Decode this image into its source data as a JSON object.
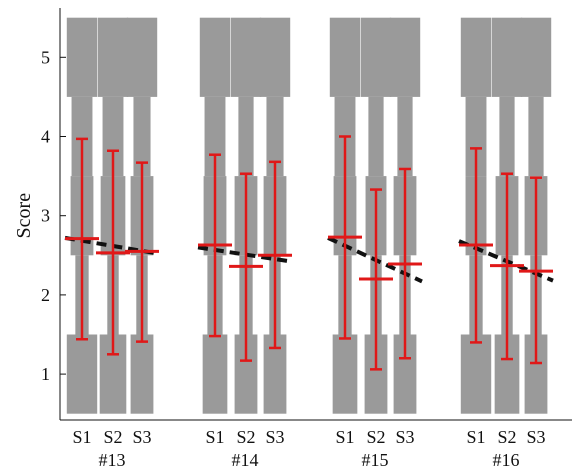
{
  "chart_data": {
    "type": "violin-errorbar",
    "ylabel": "Score",
    "ylim": [
      0.4,
      5.55
    ],
    "yticks": [
      "1",
      "2",
      "3",
      "4",
      "5"
    ],
    "grid": false,
    "colors": {
      "shape": "#9a9a9a",
      "errorbar": "#e01818",
      "trend": "#111111"
    },
    "groups": [
      {
        "label": "#13",
        "conditions": [
          {
            "label": "S1",
            "mean": 2.71,
            "low": 1.44,
            "high": 3.97,
            "dist": [
              0.16,
              0.07,
              0.12,
              0.11,
              0.16
            ]
          },
          {
            "label": "S2",
            "mean": 2.53,
            "low": 1.25,
            "high": 3.82,
            "dist": [
              0.14,
              0.06,
              0.13,
              0.11,
              0.16
            ]
          },
          {
            "label": "S3",
            "mean": 2.55,
            "low": 1.41,
            "high": 3.67,
            "dist": [
              0.12,
              0.06,
              0.12,
              0.09,
              0.16
            ]
          }
        ],
        "trend": {
          "start": 2.72,
          "end": 2.52
        }
      },
      {
        "label": "#14",
        "conditions": [
          {
            "label": "S1",
            "mean": 2.63,
            "low": 1.48,
            "high": 3.77,
            "dist": [
              0.13,
              0.08,
              0.12,
              0.11,
              0.16
            ]
          },
          {
            "label": "S2",
            "mean": 2.36,
            "low": 1.17,
            "high": 3.53,
            "dist": [
              0.12,
              0.07,
              0.12,
              0.08,
              0.16
            ]
          },
          {
            "label": "S3",
            "mean": 2.5,
            "low": 1.33,
            "high": 3.68,
            "dist": [
              0.12,
              0.06,
              0.12,
              0.09,
              0.16
            ]
          }
        ],
        "trend": {
          "start": 2.6,
          "end": 2.42
        }
      },
      {
        "label": "#15",
        "conditions": [
          {
            "label": "S1",
            "mean": 2.73,
            "low": 1.45,
            "high": 4.0,
            "dist": [
              0.13,
              0.07,
              0.12,
              0.11,
              0.16
            ]
          },
          {
            "label": "S2",
            "mean": 2.2,
            "low": 1.06,
            "high": 3.33,
            "dist": [
              0.12,
              0.06,
              0.11,
              0.08,
              0.16
            ]
          },
          {
            "label": "S3",
            "mean": 2.39,
            "low": 1.2,
            "high": 3.59,
            "dist": [
              0.12,
              0.06,
              0.12,
              0.08,
              0.16
            ]
          }
        ],
        "trend": {
          "start": 2.72,
          "end": 2.17
        }
      },
      {
        "label": "#16",
        "conditions": [
          {
            "label": "S1",
            "mean": 2.63,
            "low": 1.4,
            "high": 3.85,
            "dist": [
              0.16,
              0.07,
              0.11,
              0.11,
              0.16
            ]
          },
          {
            "label": "S2",
            "mean": 2.37,
            "low": 1.19,
            "high": 3.53,
            "dist": [
              0.13,
              0.06,
              0.12,
              0.08,
              0.16
            ]
          },
          {
            "label": "S3",
            "mean": 2.3,
            "low": 1.14,
            "high": 3.48,
            "dist": [
              0.12,
              0.06,
              0.12,
              0.08,
              0.16
            ]
          }
        ],
        "trend": {
          "start": 2.68,
          "end": 2.18
        }
      }
    ]
  }
}
